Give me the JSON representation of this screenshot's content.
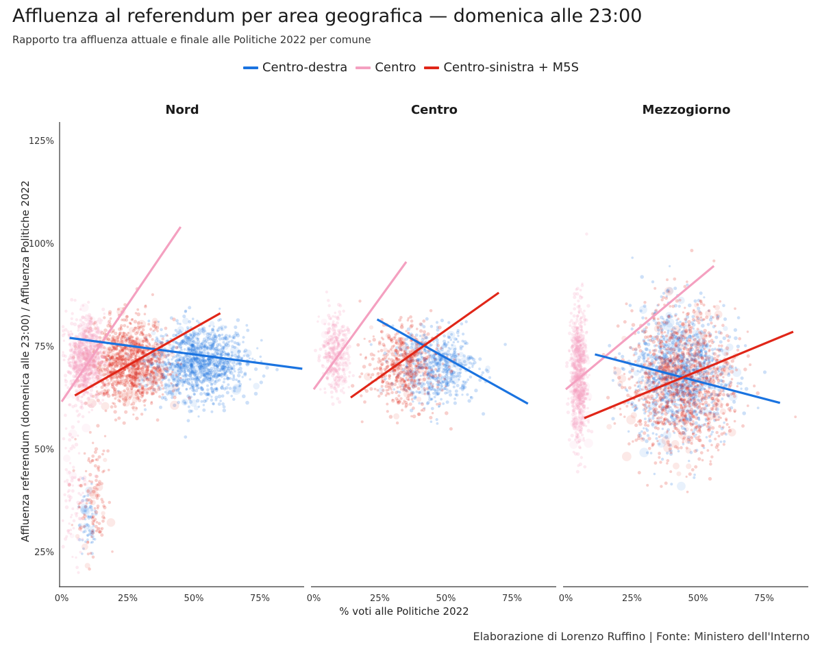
{
  "title": "Affluenza al referendum per area geografica — domenica alle 23:00",
  "subtitle": "Rapporto tra affluenza attuale e finale alle Politiche 2022 per comune",
  "caption": "Elaborazione di Lorenzo Ruffino | Fonte: Ministero dell'Interno",
  "legend": [
    {
      "label": "Centro-destra",
      "color": "#1a73e0"
    },
    {
      "label": "Centro",
      "color": "#f4a0c0"
    },
    {
      "label": "Centro-sinistra + M5S",
      "color": "#e02618"
    }
  ],
  "chart_data": {
    "type": "scatter",
    "xlabel": "% voti alle Politiche 2022",
    "ylabel": "Affluenza referendum (domenica alle 23:00) / Affluenza Politiche 2022",
    "x_ticks": [
      "0%",
      "25%",
      "50%",
      "75%"
    ],
    "y_ticks": [
      "25%",
      "50%",
      "75%",
      "100%",
      "125%"
    ],
    "xlim": [
      0,
      0.92
    ],
    "ylim": [
      0.17,
      1.3
    ],
    "grid": false,
    "legend_position": "top",
    "facets": [
      {
        "name": "Nord",
        "lines": [
          {
            "series": "Centro-destra",
            "x": [
              0.03,
              0.91
            ],
            "y": [
              0.77,
              0.695
            ]
          },
          {
            "series": "Centro",
            "x": [
              0.0,
              0.45
            ],
            "y": [
              0.615,
              1.04
            ]
          },
          {
            "series": "Centro-sinistra + M5S",
            "x": [
              0.05,
              0.6
            ],
            "y": [
              0.63,
              0.83
            ]
          }
        ],
        "clouds": [
          {
            "series": "Centro-destra",
            "cx": 0.52,
            "cy": 0.71,
            "sx": 0.09,
            "sy": 0.045,
            "n": 1100
          },
          {
            "series": "Centro-destra",
            "cx": 0.1,
            "cy": 0.33,
            "sx": 0.02,
            "sy": 0.05,
            "n": 60
          },
          {
            "series": "Centro-sinistra + M5S",
            "cx": 0.26,
            "cy": 0.71,
            "sx": 0.07,
            "sy": 0.05,
            "n": 1000
          },
          {
            "series": "Centro-sinistra + M5S",
            "cx": 0.12,
            "cy": 0.38,
            "sx": 0.03,
            "sy": 0.09,
            "n": 120
          },
          {
            "series": "Centro",
            "cx": 0.09,
            "cy": 0.72,
            "sx": 0.035,
            "sy": 0.05,
            "n": 800
          },
          {
            "series": "Centro",
            "cx": 0.04,
            "cy": 0.4,
            "sx": 0.025,
            "sy": 0.1,
            "n": 100
          }
        ]
      },
      {
        "name": "Centro",
        "lines": [
          {
            "series": "Centro-destra",
            "x": [
              0.24,
              0.81
            ],
            "y": [
              0.815,
              0.61
            ]
          },
          {
            "series": "Centro",
            "x": [
              0.0,
              0.35
            ],
            "y": [
              0.645,
              0.955
            ]
          },
          {
            "series": "Centro-sinistra + M5S",
            "x": [
              0.14,
              0.7
            ],
            "y": [
              0.625,
              0.88
            ]
          }
        ],
        "clouds": [
          {
            "series": "Centro-destra",
            "cx": 0.46,
            "cy": 0.7,
            "sx": 0.08,
            "sy": 0.045,
            "n": 550
          },
          {
            "series": "Centro-sinistra + M5S",
            "cx": 0.34,
            "cy": 0.7,
            "sx": 0.07,
            "sy": 0.05,
            "n": 500
          },
          {
            "series": "Centro",
            "cx": 0.08,
            "cy": 0.73,
            "sx": 0.025,
            "sy": 0.05,
            "n": 350
          }
        ]
      },
      {
        "name": "Mezzogiorno",
        "lines": [
          {
            "series": "Centro-destra",
            "x": [
              0.11,
              0.81
            ],
            "y": [
              0.73,
              0.612
            ]
          },
          {
            "series": "Centro",
            "x": [
              0.0,
              0.56
            ],
            "y": [
              0.645,
              0.945
            ]
          },
          {
            "series": "Centro-sinistra + M5S",
            "x": [
              0.07,
              0.86
            ],
            "y": [
              0.575,
              0.785
            ]
          }
        ],
        "clouds": [
          {
            "series": "Centro-destra",
            "cx": 0.43,
            "cy": 0.68,
            "sx": 0.09,
            "sy": 0.08,
            "n": 1100
          },
          {
            "series": "Centro-sinistra + M5S",
            "cx": 0.44,
            "cy": 0.66,
            "sx": 0.1,
            "sy": 0.09,
            "n": 1100
          },
          {
            "series": "Centro",
            "cx": 0.05,
            "cy": 0.68,
            "sx": 0.015,
            "sy": 0.08,
            "n": 700
          }
        ]
      }
    ]
  }
}
